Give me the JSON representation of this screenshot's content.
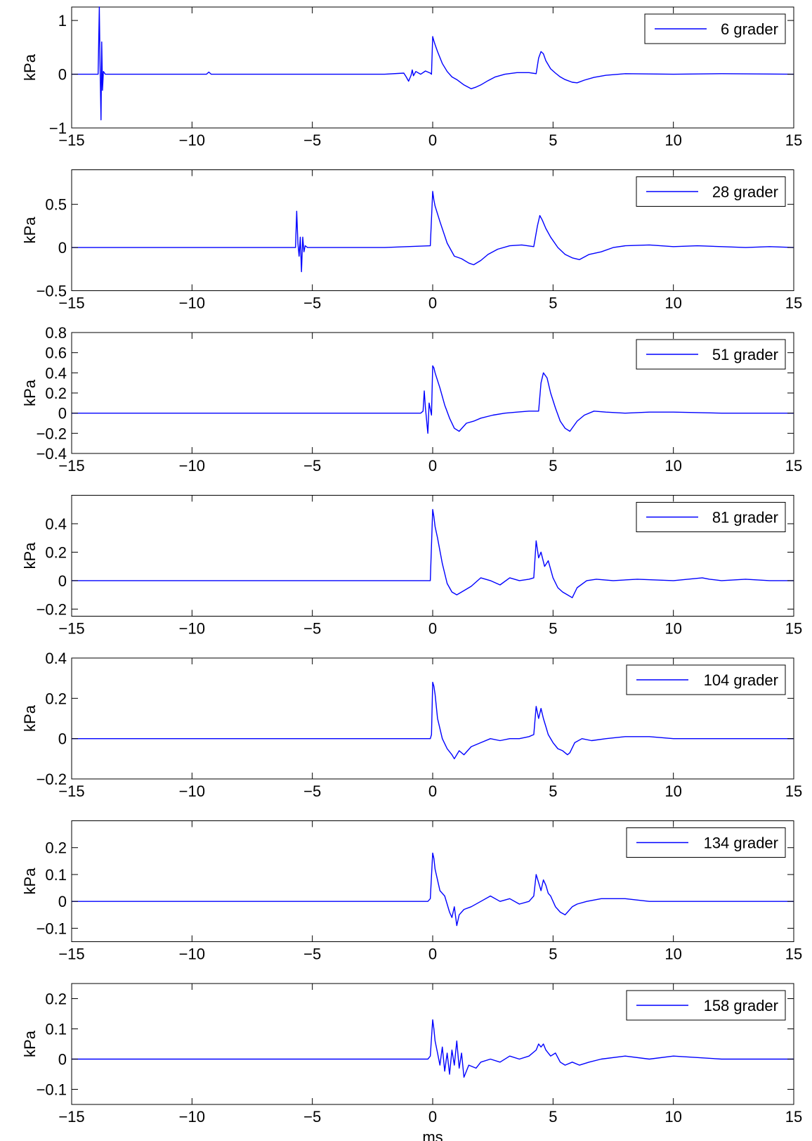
{
  "chart_data": [
    {
      "type": "line",
      "ylabel": "kPa",
      "xlabel": "",
      "xlim": [
        -15,
        15
      ],
      "ylim": [
        -1,
        1.25
      ],
      "xticks": [
        "-15",
        "-10",
        "-5",
        "0",
        "5",
        "10",
        "15"
      ],
      "yticks": [
        {
          "v": -1,
          "l": "-1"
        },
        {
          "v": 0,
          "l": "0"
        },
        {
          "v": 1,
          "l": "1"
        }
      ],
      "legend": "top-right",
      "series": [
        {
          "name": "6 grader",
          "x": [
            -15,
            -13.9,
            -13.85,
            -13.82,
            -13.78,
            -13.75,
            -13.72,
            -13.68,
            -13.6,
            -12,
            -9.4,
            -9.3,
            -9.2,
            -7,
            -2,
            -1.2,
            -1.1,
            -1.0,
            -0.9,
            -0.85,
            -0.8,
            -0.7,
            -0.5,
            -0.3,
            -0.1,
            -0.05,
            0,
            0.05,
            0.1,
            0.2,
            0.4,
            0.6,
            0.8,
            1.0,
            1.3,
            1.6,
            1.8,
            2.0,
            2.3,
            2.6,
            3.0,
            3.5,
            4.0,
            4.3,
            4.4,
            4.5,
            4.6,
            4.7,
            4.9,
            5.1,
            5.3,
            5.5,
            5.8,
            6.0,
            6.3,
            6.7,
            7.2,
            8,
            10,
            12,
            15
          ],
          "y": [
            0,
            0,
            1.25,
            0.2,
            -0.85,
            0.6,
            -0.3,
            0.05,
            0,
            0,
            0,
            0.04,
            0,
            0,
            0,
            0.02,
            -0.05,
            -0.13,
            -0.02,
            0.08,
            -0.03,
            0.05,
            0,
            0.06,
            0.02,
            0,
            0.7,
            0.62,
            0.55,
            0.42,
            0.2,
            0.05,
            -0.05,
            -0.1,
            -0.2,
            -0.27,
            -0.24,
            -0.2,
            -0.12,
            -0.05,
            0,
            0.03,
            0.03,
            0.01,
            0.3,
            0.42,
            0.38,
            0.25,
            0.1,
            0.02,
            -0.05,
            -0.1,
            -0.15,
            -0.16,
            -0.11,
            -0.06,
            -0.02,
            0.01,
            0,
            0.01,
            0
          ]
        }
      ]
    },
    {
      "type": "line",
      "ylabel": "kPa",
      "xlabel": "",
      "xlim": [
        -15,
        15
      ],
      "ylim": [
        -0.5,
        0.9
      ],
      "xticks": [
        "-15",
        "-10",
        "-5",
        "0",
        "5",
        "10",
        "15"
      ],
      "yticks": [
        {
          "v": -0.5,
          "l": "-0.5"
        },
        {
          "v": 0,
          "l": "0"
        },
        {
          "v": 0.5,
          "l": "0.5"
        }
      ],
      "legend": "top-right",
      "series": [
        {
          "name": "28 grader",
          "x": [
            -15,
            -5.7,
            -5.65,
            -5.6,
            -5.55,
            -5.5,
            -5.45,
            -5.4,
            -5.35,
            -5.3,
            -5.2,
            -2,
            -0.1,
            0,
            0.05,
            0.1,
            0.3,
            0.6,
            0.9,
            1.2,
            1.5,
            1.7,
            2.0,
            2.3,
            2.7,
            3.2,
            3.7,
            4.2,
            4.35,
            4.45,
            4.55,
            4.7,
            4.9,
            5.2,
            5.5,
            5.8,
            6.1,
            6.5,
            7.0,
            7.5,
            8.0,
            9,
            10,
            11,
            12,
            13,
            14,
            15
          ],
          "y": [
            0,
            0,
            0.42,
            0.05,
            -0.1,
            0.12,
            -0.28,
            0.12,
            -0.05,
            0.02,
            0,
            0,
            0.02,
            0.65,
            0.55,
            0.48,
            0.3,
            0.05,
            -0.1,
            -0.13,
            -0.18,
            -0.2,
            -0.15,
            -0.08,
            -0.02,
            0.02,
            0.03,
            0.01,
            0.25,
            0.37,
            0.32,
            0.22,
            0.12,
            0,
            -0.08,
            -0.12,
            -0.14,
            -0.08,
            -0.05,
            0,
            0.02,
            0.03,
            0.01,
            0.02,
            0.01,
            0,
            0.01,
            0
          ]
        }
      ]
    },
    {
      "type": "line",
      "ylabel": "kPa",
      "xlabel": "",
      "xlim": [
        -15,
        15
      ],
      "ylim": [
        -0.4,
        0.8
      ],
      "xticks": [
        "-15",
        "-10",
        "-5",
        "0",
        "5",
        "10",
        "15"
      ],
      "yticks": [
        {
          "v": -0.4,
          "l": "-0.4"
        },
        {
          "v": -0.2,
          "l": "-0.2"
        },
        {
          "v": 0,
          "l": "0"
        },
        {
          "v": 0.2,
          "l": "0.2"
        },
        {
          "v": 0.4,
          "l": "0.4"
        },
        {
          "v": 0.6,
          "l": "0.6"
        },
        {
          "v": 0.8,
          "l": "0.8"
        }
      ],
      "legend": "top-right",
      "series": [
        {
          "name": "51 grader",
          "x": [
            -15,
            -0.5,
            -0.4,
            -0.35,
            -0.3,
            -0.2,
            -0.15,
            -0.05,
            0,
            0.05,
            0.1,
            0.3,
            0.5,
            0.7,
            0.9,
            1.1,
            1.4,
            1.7,
            2.0,
            2.5,
            3.0,
            3.5,
            4.0,
            4.4,
            4.5,
            4.6,
            4.75,
            4.9,
            5.1,
            5.3,
            5.5,
            5.7,
            6.0,
            6.3,
            6.7,
            7.2,
            8,
            9,
            10,
            12,
            15
          ],
          "y": [
            0,
            0,
            0.02,
            0.22,
            0.05,
            -0.2,
            0.1,
            -0.02,
            0.47,
            0.45,
            0.4,
            0.25,
            0.08,
            -0.05,
            -0.15,
            -0.18,
            -0.1,
            -0.08,
            -0.05,
            -0.02,
            0,
            0.01,
            0.02,
            0.02,
            0.3,
            0.4,
            0.35,
            0.2,
            0.05,
            -0.08,
            -0.15,
            -0.18,
            -0.08,
            -0.02,
            0.02,
            0.01,
            0,
            0.01,
            0.01,
            0,
            0
          ]
        }
      ]
    },
    {
      "type": "line",
      "ylabel": "kPa",
      "xlabel": "",
      "xlim": [
        -15,
        15
      ],
      "ylim": [
        -0.25,
        0.6
      ],
      "xticks": [
        "-15",
        "-10",
        "-5",
        "0",
        "5",
        "10",
        "15"
      ],
      "yticks": [
        {
          "v": -0.2,
          "l": "-0.2"
        },
        {
          "v": 0,
          "l": "0"
        },
        {
          "v": 0.2,
          "l": "0.2"
        },
        {
          "v": 0.4,
          "l": "0.4"
        }
      ],
      "legend": "top-right",
      "series": [
        {
          "name": "81 grader",
          "x": [
            -15,
            -0.1,
            0,
            0.05,
            0.1,
            0.2,
            0.4,
            0.6,
            0.8,
            1.0,
            1.3,
            1.6,
            2.0,
            2.4,
            2.8,
            3.2,
            3.6,
            4.0,
            4.2,
            4.3,
            4.4,
            4.5,
            4.65,
            4.8,
            5.0,
            5.2,
            5.4,
            5.6,
            5.8,
            6.0,
            6.4,
            6.8,
            7.5,
            8.5,
            10,
            11.2,
            11.5,
            12,
            13,
            14,
            15
          ],
          "y": [
            0,
            0,
            0.5,
            0.45,
            0.38,
            0.3,
            0.12,
            -0.02,
            -0.08,
            -0.1,
            -0.07,
            -0.04,
            0.02,
            0,
            -0.03,
            0.02,
            0,
            0.01,
            0.02,
            0.28,
            0.16,
            0.2,
            0.1,
            0.14,
            0.02,
            -0.05,
            -0.08,
            -0.1,
            -0.12,
            -0.05,
            0,
            0.01,
            0,
            0.01,
            0,
            0.02,
            0.01,
            0,
            0.01,
            0,
            0
          ]
        }
      ]
    },
    {
      "type": "line",
      "ylabel": "kPa",
      "xlabel": "",
      "xlim": [
        -15,
        15
      ],
      "ylim": [
        -0.2,
        0.4
      ],
      "xticks": [
        "-15",
        "-10",
        "-5",
        "0",
        "5",
        "10",
        "15"
      ],
      "yticks": [
        {
          "v": -0.2,
          "l": "-0.2"
        },
        {
          "v": 0,
          "l": "0"
        },
        {
          "v": 0.2,
          "l": "0.2"
        },
        {
          "v": 0.4,
          "l": "0.4"
        }
      ],
      "legend": "top-right",
      "series": [
        {
          "name": "104 grader",
          "x": [
            -15,
            -0.1,
            -0.05,
            0,
            0.05,
            0.1,
            0.2,
            0.4,
            0.6,
            0.8,
            0.9,
            1.1,
            1.3,
            1.6,
            2.0,
            2.4,
            2.8,
            3.2,
            3.6,
            4.0,
            4.2,
            4.3,
            4.4,
            4.5,
            4.6,
            4.7,
            4.8,
            5.0,
            5.2,
            5.4,
            5.6,
            5.7,
            5.9,
            6.2,
            6.6,
            7.2,
            8,
            9,
            10,
            12,
            15
          ],
          "y": [
            0,
            0,
            0.02,
            0.28,
            0.26,
            0.22,
            0.1,
            0,
            -0.05,
            -0.08,
            -0.1,
            -0.06,
            -0.08,
            -0.04,
            -0.02,
            0,
            -0.01,
            0,
            0,
            0.01,
            0.02,
            0.16,
            0.1,
            0.15,
            0.1,
            0.06,
            0.02,
            -0.02,
            -0.05,
            -0.06,
            -0.08,
            -0.07,
            -0.02,
            0,
            -0.01,
            0,
            0.01,
            0.01,
            0,
            0,
            0
          ]
        }
      ]
    },
    {
      "type": "line",
      "ylabel": "kPa",
      "xlabel": "",
      "xlim": [
        -15,
        15
      ],
      "ylim": [
        -0.15,
        0.3
      ],
      "xticks": [
        "-15",
        "-10",
        "-5",
        "0",
        "5",
        "10",
        "15"
      ],
      "yticks": [
        {
          "v": -0.1,
          "l": "-0.1"
        },
        {
          "v": 0,
          "l": "0"
        },
        {
          "v": 0.1,
          "l": "0.1"
        },
        {
          "v": 0.2,
          "l": "0.2"
        }
      ],
      "legend": "top-right",
      "series": [
        {
          "name": "134 grader",
          "x": [
            -15,
            -0.2,
            -0.1,
            0,
            0.05,
            0.1,
            0.3,
            0.5,
            0.7,
            0.8,
            0.9,
            1.0,
            1.1,
            1.3,
            1.6,
            2.0,
            2.4,
            2.8,
            3.2,
            3.6,
            4.0,
            4.2,
            4.3,
            4.4,
            4.5,
            4.6,
            4.7,
            4.8,
            4.9,
            5.1,
            5.3,
            5.5,
            5.6,
            5.8,
            6.0,
            6.4,
            7.0,
            8,
            9,
            10,
            12,
            15
          ],
          "y": [
            0,
            0,
            0.01,
            0.18,
            0.16,
            0.12,
            0.04,
            0.02,
            -0.04,
            -0.06,
            -0.02,
            -0.09,
            -0.05,
            -0.03,
            -0.02,
            0,
            0.02,
            0,
            0.01,
            -0.01,
            0,
            0.02,
            0.1,
            0.07,
            0.04,
            0.08,
            0.06,
            0.03,
            0.02,
            -0.02,
            -0.04,
            -0.05,
            -0.04,
            -0.02,
            -0.01,
            0,
            0.01,
            0.01,
            0,
            0,
            0,
            0
          ]
        }
      ]
    },
    {
      "type": "line",
      "ylabel": "kPa",
      "xlabel": "ms",
      "xlim": [
        -15,
        15
      ],
      "ylim": [
        -0.15,
        0.25
      ],
      "xticks": [
        "-15",
        "-10",
        "-5",
        "0",
        "5",
        "10",
        "15"
      ],
      "yticks": [
        {
          "v": -0.1,
          "l": "-0.1"
        },
        {
          "v": 0,
          "l": "0"
        },
        {
          "v": 0.1,
          "l": "0.1"
        },
        {
          "v": 0.2,
          "l": "0.2"
        }
      ],
      "legend": "top-right",
      "series": [
        {
          "name": "158 grader",
          "x": [
            -15,
            -0.2,
            -0.1,
            0,
            0.05,
            0.1,
            0.2,
            0.3,
            0.4,
            0.5,
            0.6,
            0.7,
            0.8,
            0.9,
            1.0,
            1.1,
            1.2,
            1.3,
            1.5,
            1.8,
            2.0,
            2.4,
            2.8,
            3.2,
            3.6,
            4.0,
            4.3,
            4.4,
            4.5,
            4.6,
            4.7,
            4.9,
            5.1,
            5.3,
            5.5,
            5.8,
            6.1,
            6.5,
            7.0,
            8,
            9,
            10,
            12,
            15
          ],
          "y": [
            0,
            0,
            0.01,
            0.13,
            0.1,
            0.06,
            0.02,
            -0.02,
            0.04,
            -0.04,
            0.02,
            -0.05,
            0.03,
            -0.02,
            0.06,
            -0.03,
            0.02,
            -0.06,
            -0.02,
            -0.03,
            -0.01,
            0,
            -0.01,
            0.01,
            0,
            0.01,
            0.03,
            0.05,
            0.04,
            0.05,
            0.03,
            0.01,
            0.02,
            -0.01,
            -0.02,
            -0.01,
            -0.02,
            -0.01,
            0,
            0.01,
            0,
            0.01,
            0,
            0
          ]
        }
      ]
    }
  ]
}
